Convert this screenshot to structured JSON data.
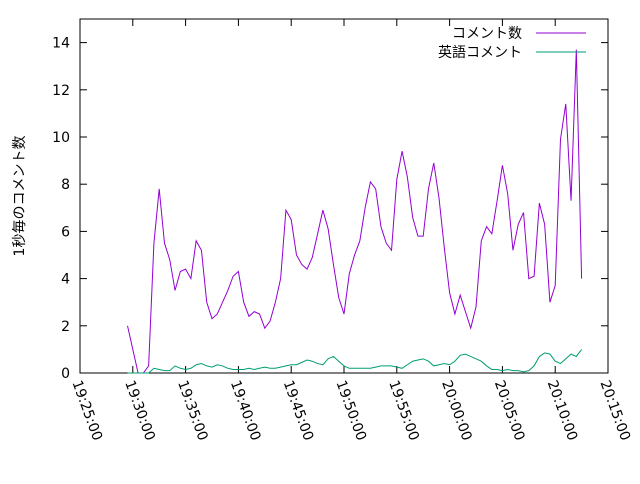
{
  "chart_data": {
    "type": "line",
    "ylabel": "1秒毎のコメント数",
    "x": [
      "19:29:30",
      "19:30:00",
      "19:30:30",
      "19:31:00",
      "19:31:30",
      "19:32:00",
      "19:32:30",
      "19:33:00",
      "19:33:30",
      "19:34:00",
      "19:34:30",
      "19:35:00",
      "19:35:30",
      "19:36:00",
      "19:36:30",
      "19:37:00",
      "19:37:30",
      "19:38:00",
      "19:38:30",
      "19:39:00",
      "19:39:30",
      "19:40:00",
      "19:40:30",
      "19:41:00",
      "19:41:30",
      "19:42:00",
      "19:42:30",
      "19:43:00",
      "19:43:30",
      "19:44:00",
      "19:44:30",
      "19:45:00",
      "19:45:30",
      "19:46:00",
      "19:46:30",
      "19:47:00",
      "19:47:30",
      "19:48:00",
      "19:48:30",
      "19:49:00",
      "19:49:30",
      "19:50:00",
      "19:50:30",
      "19:51:00",
      "19:51:30",
      "19:52:00",
      "19:52:30",
      "19:53:00",
      "19:53:30",
      "19:54:00",
      "19:54:30",
      "19:55:00",
      "19:55:30",
      "19:56:00",
      "19:56:30",
      "19:57:00",
      "19:57:30",
      "19:58:00",
      "19:58:30",
      "19:59:00",
      "19:59:30",
      "20:00:00",
      "20:00:30",
      "20:01:00",
      "20:01:30",
      "20:02:00",
      "20:02:30",
      "20:03:00",
      "20:03:30",
      "20:04:00",
      "20:04:30",
      "20:05:00",
      "20:05:30",
      "20:06:00",
      "20:06:30",
      "20:07:00",
      "20:07:30",
      "20:08:00",
      "20:08:30",
      "20:09:00",
      "20:09:30",
      "20:10:00",
      "20:10:30",
      "20:11:00",
      "20:11:30",
      "20:12:00",
      "20:12:30"
    ],
    "series": [
      {
        "name": "コメント数",
        "color": "#9400d3",
        "values": [
          2.0,
          1.0,
          0,
          0,
          0.3,
          5.5,
          7.8,
          5.5,
          4.8,
          3.5,
          4.3,
          4.4,
          4.0,
          5.6,
          5.2,
          3.0,
          2.3,
          2.5,
          3.0,
          3.5,
          4.1,
          4.3,
          3.0,
          2.4,
          2.6,
          2.5,
          1.9,
          2.2,
          3.0,
          4.0,
          6.9,
          6.5,
          5.0,
          4.6,
          4.4,
          4.9,
          5.9,
          6.9,
          6.1,
          4.6,
          3.2,
          2.5,
          4.2,
          5.0,
          5.6,
          7.0,
          8.1,
          7.8,
          6.2,
          5.5,
          5.2,
          8.2,
          9.4,
          8.3,
          6.6,
          5.8,
          5.8,
          7.8,
          8.9,
          7.4,
          5.3,
          3.4,
          2.5,
          3.3,
          2.6,
          1.9,
          2.8,
          5.6,
          6.2,
          5.9,
          7.3,
          8.8,
          7.6,
          5.2,
          6.3,
          6.8,
          4.0,
          4.1,
          7.2,
          6.3,
          3.0,
          3.7,
          9.9,
          11.4,
          7.3,
          13.7,
          4.0
        ]
      },
      {
        "name": "英語コメント",
        "color": "#009e73",
        "values": [
          0,
          0,
          0,
          0,
          0,
          0.2,
          0.15,
          0.1,
          0.1,
          0.3,
          0.2,
          0.15,
          0.2,
          0.35,
          0.4,
          0.3,
          0.25,
          0.35,
          0.3,
          0.2,
          0.15,
          0.15,
          0.15,
          0.2,
          0.15,
          0.2,
          0.25,
          0.2,
          0.2,
          0.25,
          0.3,
          0.35,
          0.35,
          0.45,
          0.55,
          0.5,
          0.4,
          0.35,
          0.6,
          0.7,
          0.5,
          0.3,
          0.2,
          0.2,
          0.2,
          0.2,
          0.2,
          0.25,
          0.3,
          0.3,
          0.3,
          0.25,
          0.2,
          0.35,
          0.5,
          0.55,
          0.6,
          0.5,
          0.3,
          0.35,
          0.4,
          0.35,
          0.5,
          0.75,
          0.8,
          0.7,
          0.6,
          0.5,
          0.3,
          0.15,
          0.15,
          0.1,
          0.15,
          0.1,
          0.1,
          0.05,
          0.1,
          0.3,
          0.7,
          0.85,
          0.8,
          0.5,
          0.4,
          0.6,
          0.8,
          0.7,
          1.0
        ]
      }
    ],
    "xlim": [
      "19:25:00",
      "20:15:00"
    ],
    "xticks": [
      "19:25:00",
      "19:30:00",
      "19:35:00",
      "19:40:00",
      "19:45:00",
      "19:50:00",
      "19:55:00",
      "20:00:00",
      "20:05:00",
      "20:10:00",
      "20:15:00"
    ],
    "ylim": [
      0,
      15
    ],
    "yticks": [
      0,
      2,
      4,
      6,
      8,
      10,
      12,
      14
    ],
    "legend": "top-right"
  }
}
